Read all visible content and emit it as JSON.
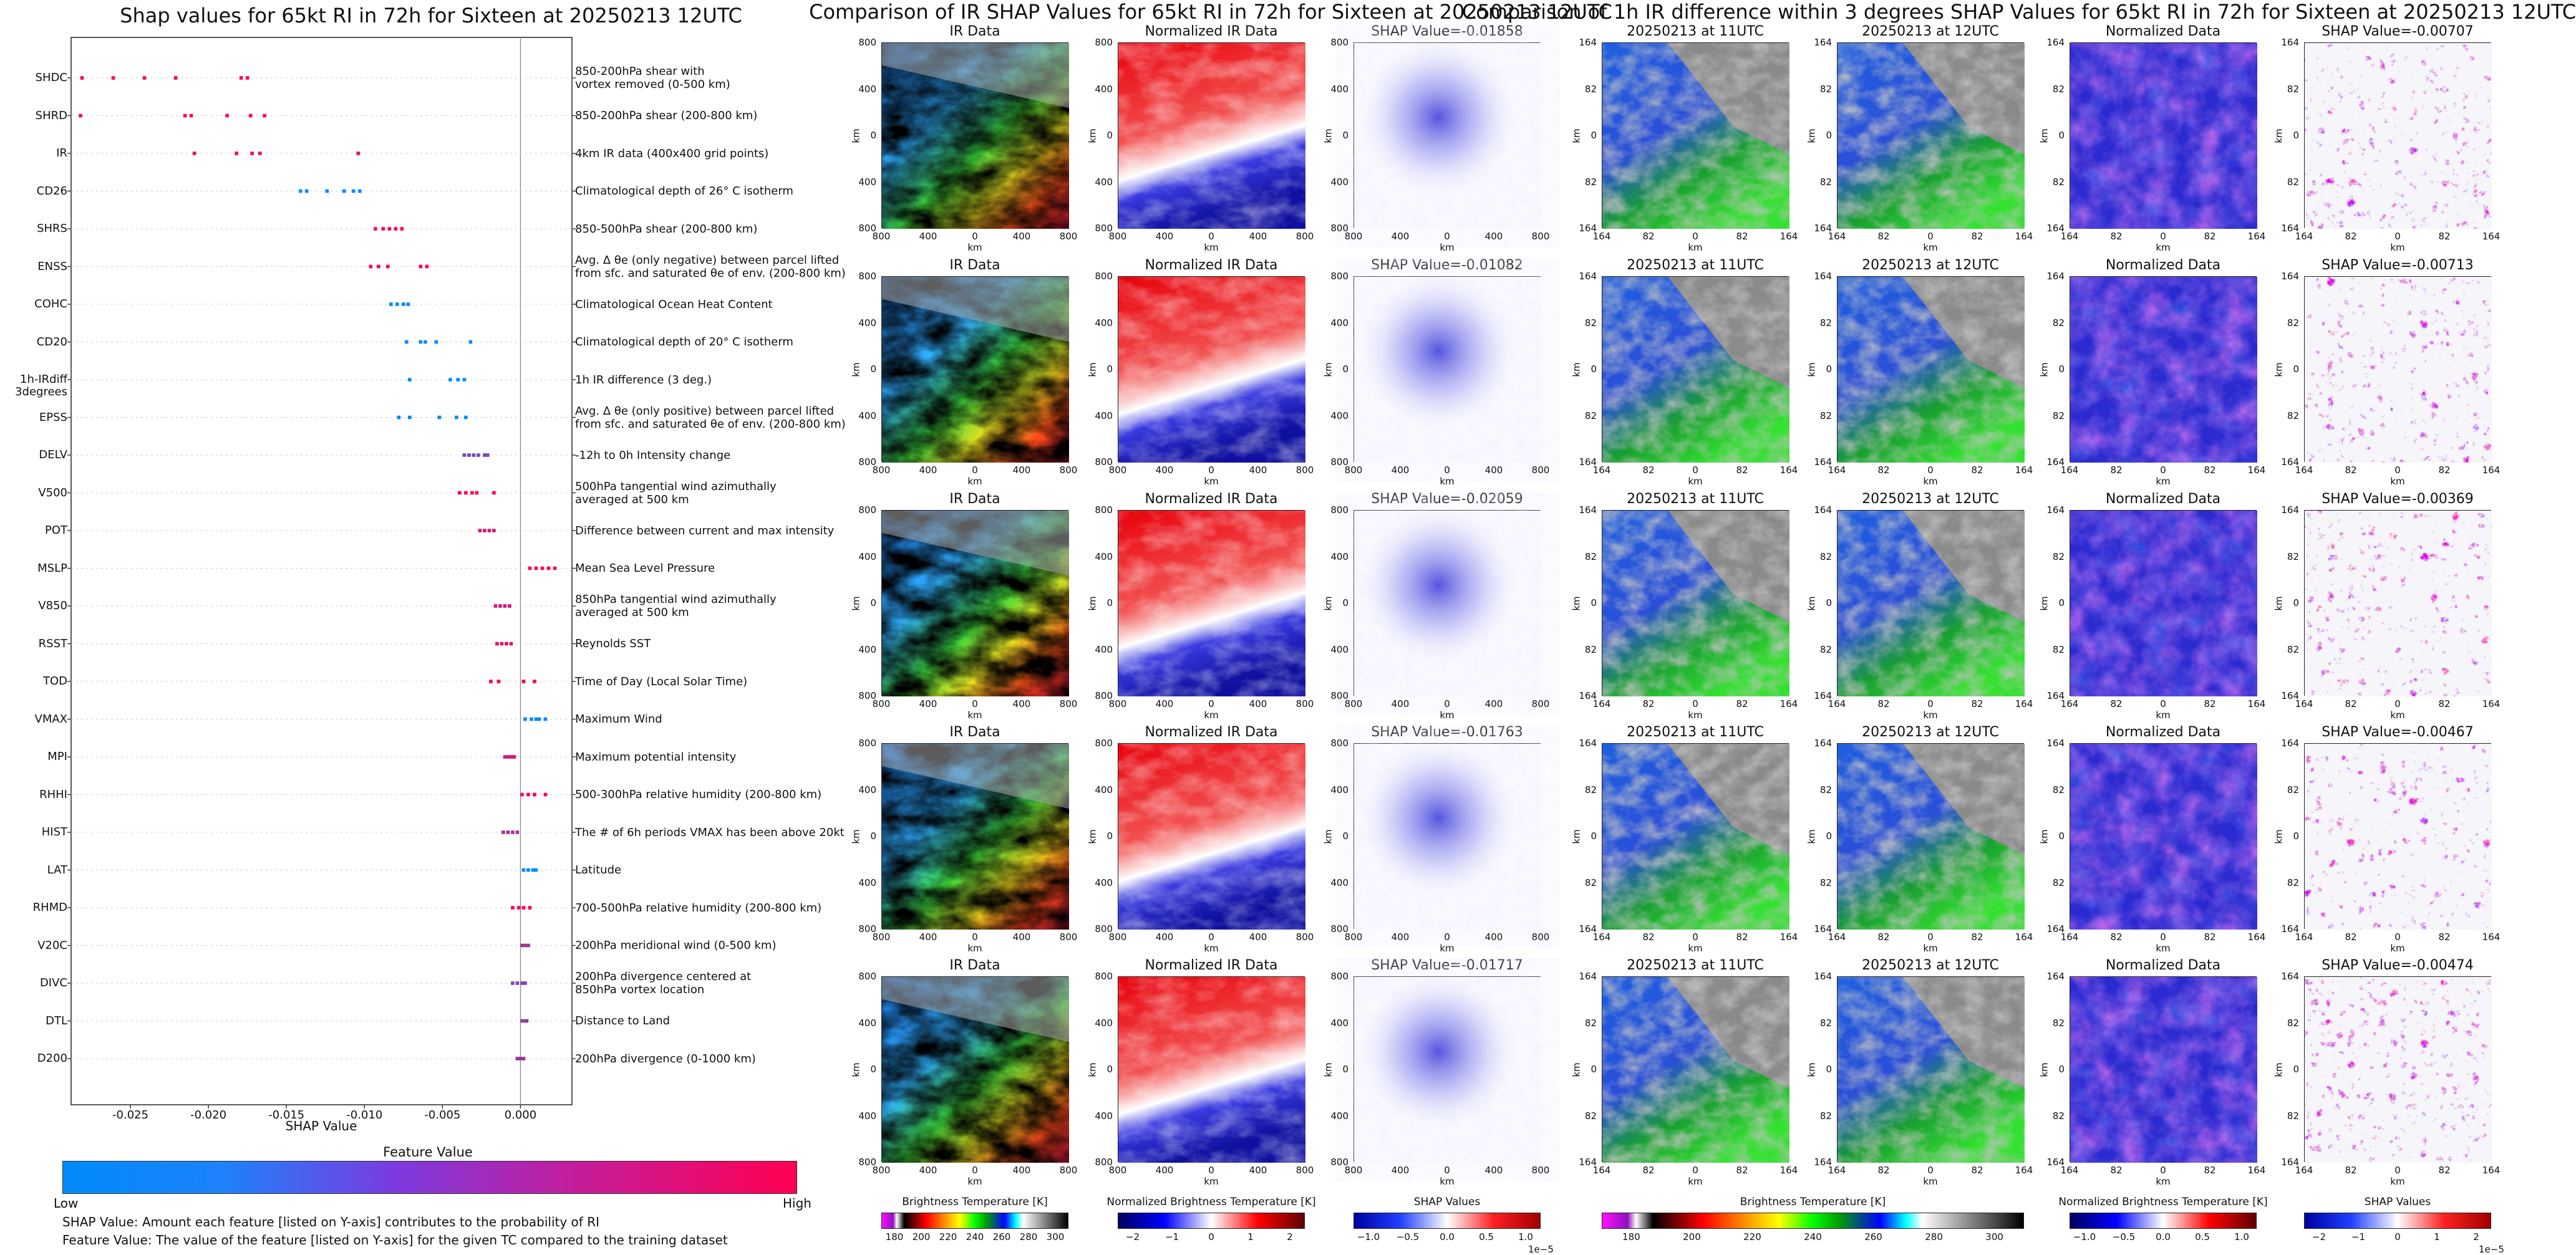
{
  "chart_data": [
    {
      "type": "scatter",
      "title": "Shap values for 65kt RI in 72h for Sixteen at 20250213 12UTC",
      "xlabel": "SHAP Value",
      "xlim": [
        -0.0288,
        0.0033
      ],
      "xticks": [
        "-0.025",
        "-0.020",
        "-0.015",
        "-0.010",
        "-0.005",
        "0.000"
      ],
      "xtick_values": [
        -0.025,
        -0.02,
        -0.015,
        -0.01,
        -0.005,
        0.0
      ],
      "colorbar": {
        "title": "Feature Value",
        "low": "Low",
        "high": "High",
        "low_color": "#008bfb",
        "high_color": "#ff0052"
      },
      "features": [
        {
          "name": "SHDC",
          "desc": "850-200hPa shear with\nvortex removed (0-500 km)",
          "points": [
            [
              -0.0281,
              1
            ],
            [
              -0.0261,
              1
            ],
            [
              -0.0241,
              1
            ],
            [
              -0.0221,
              1
            ],
            [
              -0.0179,
              1
            ],
            [
              -0.0175,
              1
            ]
          ]
        },
        {
          "name": "SHRD",
          "desc": "850-200hPa shear (200-800 km)",
          "points": [
            [
              -0.0282,
              1
            ],
            [
              -0.0215,
              1
            ],
            [
              -0.0211,
              1
            ],
            [
              -0.0188,
              1
            ],
            [
              -0.0173,
              1
            ],
            [
              -0.0164,
              1
            ]
          ]
        },
        {
          "name": "IR",
          "desc": "4km IR data (400x400 grid points)",
          "points": [
            [
              -0.0209,
              0.9
            ],
            [
              -0.0182,
              0.9
            ],
            [
              -0.0172,
              0.9
            ],
            [
              -0.0167,
              0.9
            ],
            [
              -0.0104,
              0.9
            ]
          ]
        },
        {
          "name": "CD26",
          "desc": "Climatological depth of 26° C isotherm",
          "points": [
            [
              -0.0141,
              0
            ],
            [
              -0.0137,
              0
            ],
            [
              -0.0124,
              0
            ],
            [
              -0.0113,
              0
            ],
            [
              -0.0107,
              0
            ],
            [
              -0.0103,
              0
            ]
          ]
        },
        {
          "name": "SHRS",
          "desc": "850-500hPa shear (200-800 km)",
          "points": [
            [
              -0.0093,
              1
            ],
            [
              -0.0088,
              1
            ],
            [
              -0.0084,
              1
            ],
            [
              -0.008,
              1
            ],
            [
              -0.0076,
              1
            ]
          ]
        },
        {
          "name": "ENSS",
          "desc": "Avg. Δ θe (only negative) between parcel lifted\nfrom sfc. and saturated θe of env. (200-800 km)",
          "points": [
            [
              -0.0096,
              1
            ],
            [
              -0.0091,
              1
            ],
            [
              -0.0085,
              1
            ],
            [
              -0.0064,
              1
            ],
            [
              -0.006,
              1
            ]
          ]
        },
        {
          "name": "COHC",
          "desc": "Climatological Ocean Heat Content",
          "points": [
            [
              -0.0083,
              0
            ],
            [
              -0.0079,
              0
            ],
            [
              -0.0075,
              0
            ],
            [
              -0.0072,
              0
            ]
          ]
        },
        {
          "name": "CD20",
          "desc": "Climatological depth of 20° C isotherm",
          "points": [
            [
              -0.0073,
              0
            ],
            [
              -0.0064,
              0
            ],
            [
              -0.0061,
              0
            ],
            [
              -0.0054,
              0
            ],
            [
              -0.0032,
              0
            ]
          ]
        },
        {
          "name": "1h-IRdiff\n3degrees",
          "desc": "1h IR difference (3 deg.)",
          "points": [
            [
              -0.0071,
              0
            ],
            [
              -0.0045,
              0
            ],
            [
              -0.004,
              0
            ],
            [
              -0.0036,
              0
            ]
          ]
        },
        {
          "name": "EPSS",
          "desc": "Avg. Δ θe (only positive) between parcel lifted\nfrom sfc. and saturated θe of env. (200-800 km)",
          "points": [
            [
              -0.0078,
              0
            ],
            [
              -0.0071,
              0
            ],
            [
              -0.0052,
              0
            ],
            [
              -0.0041,
              0
            ],
            [
              -0.0035,
              0
            ]
          ]
        },
        {
          "name": "DELV",
          "desc": "-12h to 0h Intensity change",
          "points": [
            [
              -0.0036,
              0.45
            ],
            [
              -0.0033,
              0.45
            ],
            [
              -0.003,
              0.45
            ],
            [
              -0.0027,
              0.45
            ],
            [
              -0.0023,
              0.45
            ],
            [
              -0.0021,
              0.45
            ]
          ]
        },
        {
          "name": "V500",
          "desc": "500hPa tangential wind azimuthally\naveraged at 500 km",
          "points": [
            [
              -0.0039,
              1
            ],
            [
              -0.0035,
              1
            ],
            [
              -0.0031,
              1
            ],
            [
              -0.0028,
              1
            ],
            [
              -0.0017,
              1
            ]
          ]
        },
        {
          "name": "POT",
          "desc": "Difference between current and max intensity",
          "points": [
            [
              -0.0026,
              0.8
            ],
            [
              -0.0023,
              0.8
            ],
            [
              -0.002,
              0.8
            ],
            [
              -0.0017,
              0.8
            ]
          ]
        },
        {
          "name": "MSLP",
          "desc": "Mean Sea Level Pressure",
          "points": [
            [
              0.0006,
              1
            ],
            [
              0.001,
              1
            ],
            [
              0.0014,
              1
            ],
            [
              0.0018,
              1
            ],
            [
              0.0022,
              1
            ]
          ]
        },
        {
          "name": "V850",
          "desc": "850hPa tangential wind azimuthally\naveraged at 500 km",
          "points": [
            [
              -0.0016,
              0.8
            ],
            [
              -0.0013,
              0.8
            ],
            [
              -0.001,
              0.8
            ],
            [
              -0.0007,
              0.8
            ]
          ]
        },
        {
          "name": "RSST",
          "desc": "Reynolds SST",
          "points": [
            [
              -0.0015,
              0.85
            ],
            [
              -0.0012,
              0.85
            ],
            [
              -0.0009,
              0.85
            ],
            [
              -0.0006,
              0.85
            ]
          ]
        },
        {
          "name": "TOD",
          "desc": "Time of Day (Local Solar Time)",
          "points": [
            [
              -0.0019,
              1
            ],
            [
              -0.0014,
              1
            ],
            [
              0.0002,
              1
            ],
            [
              0.0009,
              1
            ]
          ]
        },
        {
          "name": "VMAX",
          "desc": "Maximum Wind",
          "points": [
            [
              0.0003,
              0
            ],
            [
              0.0007,
              0
            ],
            [
              0.001,
              0
            ],
            [
              0.0012,
              0
            ],
            [
              0.0016,
              0
            ]
          ]
        },
        {
          "name": "MPI",
          "desc": "Maximum potential intensity",
          "points": [
            [
              -0.001,
              0.8
            ],
            [
              -0.0008,
              0.8
            ],
            [
              -0.0006,
              0.8
            ],
            [
              -0.0004,
              0.8
            ]
          ]
        },
        {
          "name": "RHHI",
          "desc": "500-300hPa relative humidity (200-800 km)",
          "points": [
            [
              0.0001,
              1
            ],
            [
              0.0005,
              1
            ],
            [
              0.0009,
              1
            ],
            [
              0.0016,
              1
            ]
          ]
        },
        {
          "name": "HIST",
          "desc": "The # of 6h periods VMAX has been above 20kt",
          "points": [
            [
              -0.0011,
              0.65
            ],
            [
              -0.0008,
              0.65
            ],
            [
              -0.0005,
              0.65
            ],
            [
              -0.0002,
              0.65
            ]
          ]
        },
        {
          "name": "LAT",
          "desc": "Latitude",
          "points": [
            [
              0.0002,
              0
            ],
            [
              0.0005,
              0
            ],
            [
              0.0008,
              0
            ],
            [
              0.001,
              0
            ]
          ]
        },
        {
          "name": "RHMD",
          "desc": "700-500hPa relative humidity (200-800 km)",
          "points": [
            [
              -0.0005,
              1
            ],
            [
              -0.0001,
              1
            ],
            [
              0.0002,
              1
            ],
            [
              0.0006,
              1
            ]
          ]
        },
        {
          "name": "V20C",
          "desc": "200hPa meridional wind (0-500 km)",
          "points": [
            [
              0.0001,
              0.6
            ],
            [
              0.0003,
              0.6
            ],
            [
              0.0005,
              0.6
            ]
          ]
        },
        {
          "name": "DIVC",
          "desc": "200hPa divergence centered at\n850hPa vortex location",
          "points": [
            [
              -0.0005,
              0.5
            ],
            [
              -0.0002,
              0.5
            ],
            [
              0.0001,
              0.5
            ],
            [
              0.0003,
              0.5
            ]
          ]
        },
        {
          "name": "DTL",
          "desc": "Distance to Land",
          "points": [
            [
              0.0001,
              0.55
            ],
            [
              0.0003,
              0.55
            ],
            [
              0.0004,
              0.55
            ]
          ]
        },
        {
          "name": "D200",
          "desc": "200hPa divergence (0-1000 km)",
          "points": [
            [
              -0.0002,
              0.6
            ],
            [
              0.0,
              0.6
            ],
            [
              0.0002,
              0.6
            ]
          ]
        }
      ]
    },
    {
      "type": "heatmap",
      "title": "Comparison of IR SHAP Values for 65kt RI in 72h for Sixteen at 20250213 12UTC",
      "columns": [
        "IR Data",
        "Normalized IR Data",
        "SHAP Value"
      ],
      "shap_values": [
        "-0.01858",
        "-0.01082",
        "-0.02059",
        "-0.01763",
        "-0.01717"
      ],
      "xlabel": "km",
      "ylabel": "km",
      "xticks": [
        "800",
        "400",
        "0",
        "400",
        "800"
      ],
      "yticks": [
        "800",
        "400",
        "0",
        "400",
        "800"
      ],
      "colorbars": [
        {
          "label": "Brightness Temperature [K]",
          "ticks": [
            "180",
            "200",
            "220",
            "240",
            "260",
            "280",
            "300"
          ]
        },
        {
          "label": "Normalized Brightness Temperature [K]",
          "ticks": [
            "−2",
            "−1",
            "0",
            "1",
            "2"
          ]
        },
        {
          "label": "SHAP Values",
          "ticks": [
            "−1.0",
            "−0.5",
            "0.0",
            "0.5",
            "1.0"
          ],
          "exponent": "1e−5"
        }
      ]
    },
    {
      "type": "heatmap",
      "title": "Comparison of 1h IR difference within 3 degrees SHAP Values for 65kt RI in 72h for Sixteen at 20250213 12UTC",
      "columns": [
        "20250213 at 11UTC",
        "20250213 at 12UTC",
        "Normalized Data",
        "SHAP Value"
      ],
      "shap_values": [
        "-0.00707",
        "-0.00713",
        "-0.00369",
        "-0.00467",
        "-0.00474"
      ],
      "xlabel": "km",
      "ylabel": "km",
      "xticks": [
        "164",
        "82",
        "0",
        "82",
        "164"
      ],
      "yticks": [
        "164",
        "82",
        "0",
        "82",
        "164"
      ],
      "colorbars": [
        {
          "label": "Brightness Temperature [K]",
          "ticks": [
            "180",
            "200",
            "220",
            "240",
            "260",
            "280",
            "300"
          ]
        },
        {
          "label": "Normalized Brightness Temperature [K]",
          "ticks": [
            "−1.0",
            "−0.5",
            "0.0",
            "0.5",
            "1.0"
          ]
        },
        {
          "label": "SHAP Values",
          "ticks": [
            "−2",
            "−1",
            "0",
            "1",
            "2"
          ],
          "exponent": "1e−5"
        }
      ]
    }
  ],
  "notes": {
    "shap_note": "SHAP Value: Amount each feature [listed on Y-axis] contributes to the probability of RI",
    "feature_note": "Feature Value: The value of the feature [listed on Y-axis] for the given TC compared to the training dataset"
  },
  "shap_prefix": "SHAP Value=",
  "colors": {
    "low": "#008bfb",
    "high": "#ff0052",
    "ir_gray": "#8c8c8c",
    "ir_green": "#38d92b",
    "ir_blue": "#1560d6"
  }
}
